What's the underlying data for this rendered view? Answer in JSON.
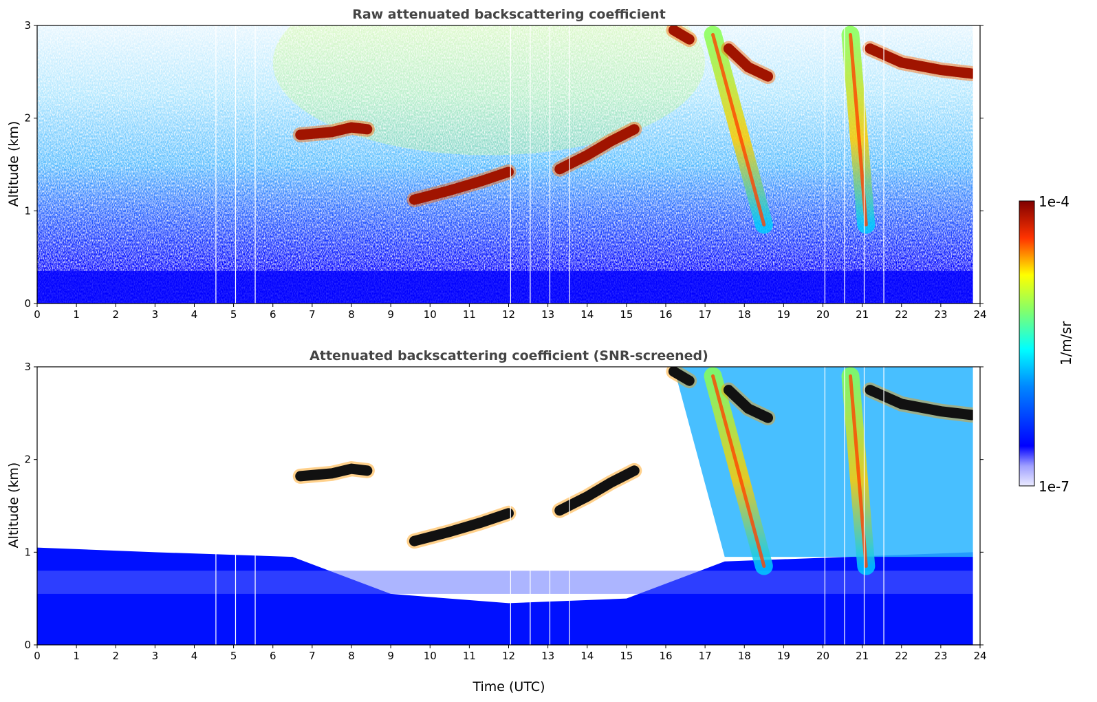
{
  "chart_data": [
    {
      "type": "heatmap",
      "title": "Raw attenuated backscattering coefficient",
      "xlabel": "",
      "ylabel": "Altitude (km)",
      "xlim": [
        0,
        24
      ],
      "ylim": [
        0,
        3
      ],
      "x_ticks": [
        "0",
        "1",
        "2",
        "3",
        "4",
        "5",
        "6",
        "7",
        "8",
        "9",
        "10",
        "11",
        "12",
        "13",
        "14",
        "15",
        "16",
        "17",
        "18",
        "19",
        "20",
        "21",
        "22",
        "23",
        "24"
      ],
      "y_ticks": [
        "0",
        "1",
        "2",
        "3"
      ],
      "data_gaps_utc": [
        4.55,
        5.05,
        5.55,
        12.05,
        12.55,
        13.05,
        13.55,
        20.05,
        20.55,
        21.05,
        21.55
      ],
      "cloud_layers": [
        {
          "x": [
            6.7,
            7.5,
            8.0,
            8.4
          ],
          "y": [
            1.82,
            1.85,
            1.9,
            1.88
          ]
        },
        {
          "x": [
            9.6,
            10.5,
            11.3,
            12.0
          ],
          "y": [
            1.12,
            1.22,
            1.32,
            1.42
          ]
        },
        {
          "x": [
            13.3,
            14.0,
            14.6,
            15.2
          ],
          "y": [
            1.45,
            1.6,
            1.75,
            1.88
          ]
        },
        {
          "x": [
            16.2,
            16.6
          ],
          "y": [
            2.95,
            2.85
          ]
        },
        {
          "x": [
            17.6,
            18.1,
            18.6
          ],
          "y": [
            2.75,
            2.55,
            2.45
          ]
        },
        {
          "x": [
            21.2,
            22.0,
            23.0,
            23.8
          ],
          "y": [
            2.75,
            2.6,
            2.52,
            2.48
          ]
        }
      ],
      "fall_streaks": [
        {
          "x": [
            17.2,
            18.5
          ],
          "y": [
            2.9,
            0.85
          ]
        },
        {
          "x": [
            20.7,
            21.1
          ],
          "y": [
            2.9,
            0.85
          ]
        }
      ]
    },
    {
      "type": "heatmap",
      "title": "Attenuated backscattering coefficient (SNR-screened)",
      "xlabel": "Time (UTC)",
      "ylabel": "Altitude (km)",
      "xlim": [
        0,
        24
      ],
      "ylim": [
        0,
        3
      ],
      "x_ticks": [
        "0",
        "1",
        "2",
        "3",
        "4",
        "5",
        "6",
        "7",
        "8",
        "9",
        "10",
        "11",
        "12",
        "13",
        "14",
        "15",
        "16",
        "17",
        "18",
        "19",
        "20",
        "21",
        "22",
        "23",
        "24"
      ],
      "y_ticks": [
        "0",
        "1",
        "2",
        "3"
      ],
      "boundary_layer_top_km": {
        "x": [
          0,
          3,
          6.5,
          9,
          12,
          15,
          17.5,
          24
        ],
        "y": [
          1.05,
          1.0,
          0.95,
          0.55,
          0.45,
          0.5,
          0.9,
          1.0
        ]
      }
    }
  ],
  "colorbar": {
    "label": "1/m/sr",
    "max_label": "1e-4",
    "min_label": "1e-7",
    "colormap": "jet",
    "colors": [
      "#ebebff",
      "#0000ff",
      "#00ffff",
      "#ffff00",
      "#ff0000",
      "#800000"
    ]
  }
}
